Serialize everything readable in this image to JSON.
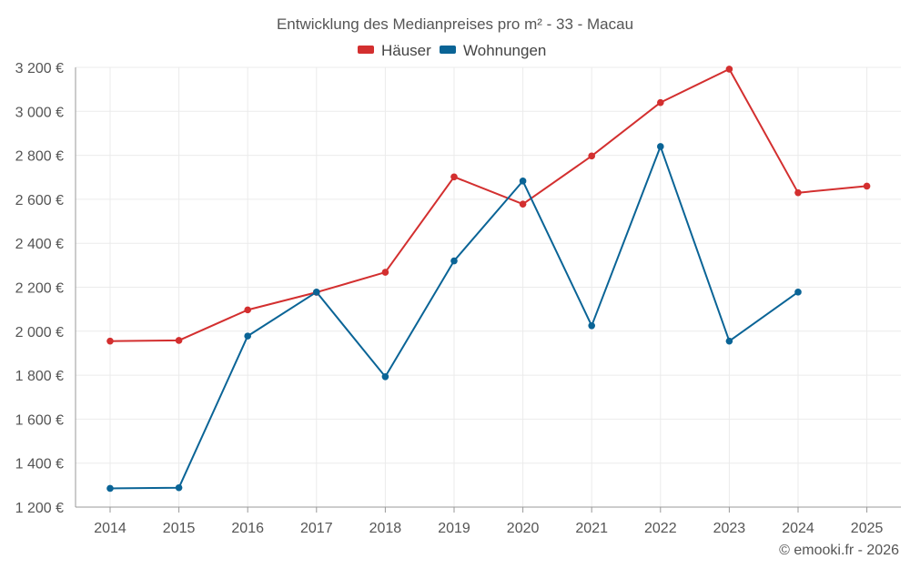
{
  "chart_data": {
    "type": "line",
    "title": "Entwicklung des Medianpreises pro m² - 33 - Macau",
    "categories": [
      "2014",
      "2015",
      "2016",
      "2017",
      "2018",
      "2019",
      "2020",
      "2021",
      "2022",
      "2023",
      "2024",
      "2025"
    ],
    "series": [
      {
        "name": "Häuser",
        "color": "#d32f2f",
        "values": [
          1955,
          1958,
          2097,
          2177,
          2268,
          2702,
          2578,
          2797,
          3040,
          3192,
          2630,
          2660
        ]
      },
      {
        "name": "Wohnungen",
        "color": "#0a6496",
        "values": [
          1285,
          1288,
          1978,
          2178,
          1793,
          2320,
          2683,
          2025,
          2840,
          1955,
          2178,
          null
        ]
      }
    ],
    "y_ticks": [
      1200,
      1400,
      1600,
      1800,
      2000,
      2200,
      2400,
      2600,
      2800,
      3000,
      3200
    ],
    "y_tick_labels": [
      "1 200 €",
      "1 400 €",
      "1 600 €",
      "1 800 €",
      "2 000 €",
      "2 200 €",
      "2 400 €",
      "2 600 €",
      "2 800 €",
      "3 000 €",
      "3 200 €"
    ],
    "ylim": [
      1200,
      3200
    ],
    "xlabel": "",
    "ylabel": "",
    "grid": true,
    "legend_position": "top-center"
  },
  "credit": "© emooki.fr - 2026"
}
